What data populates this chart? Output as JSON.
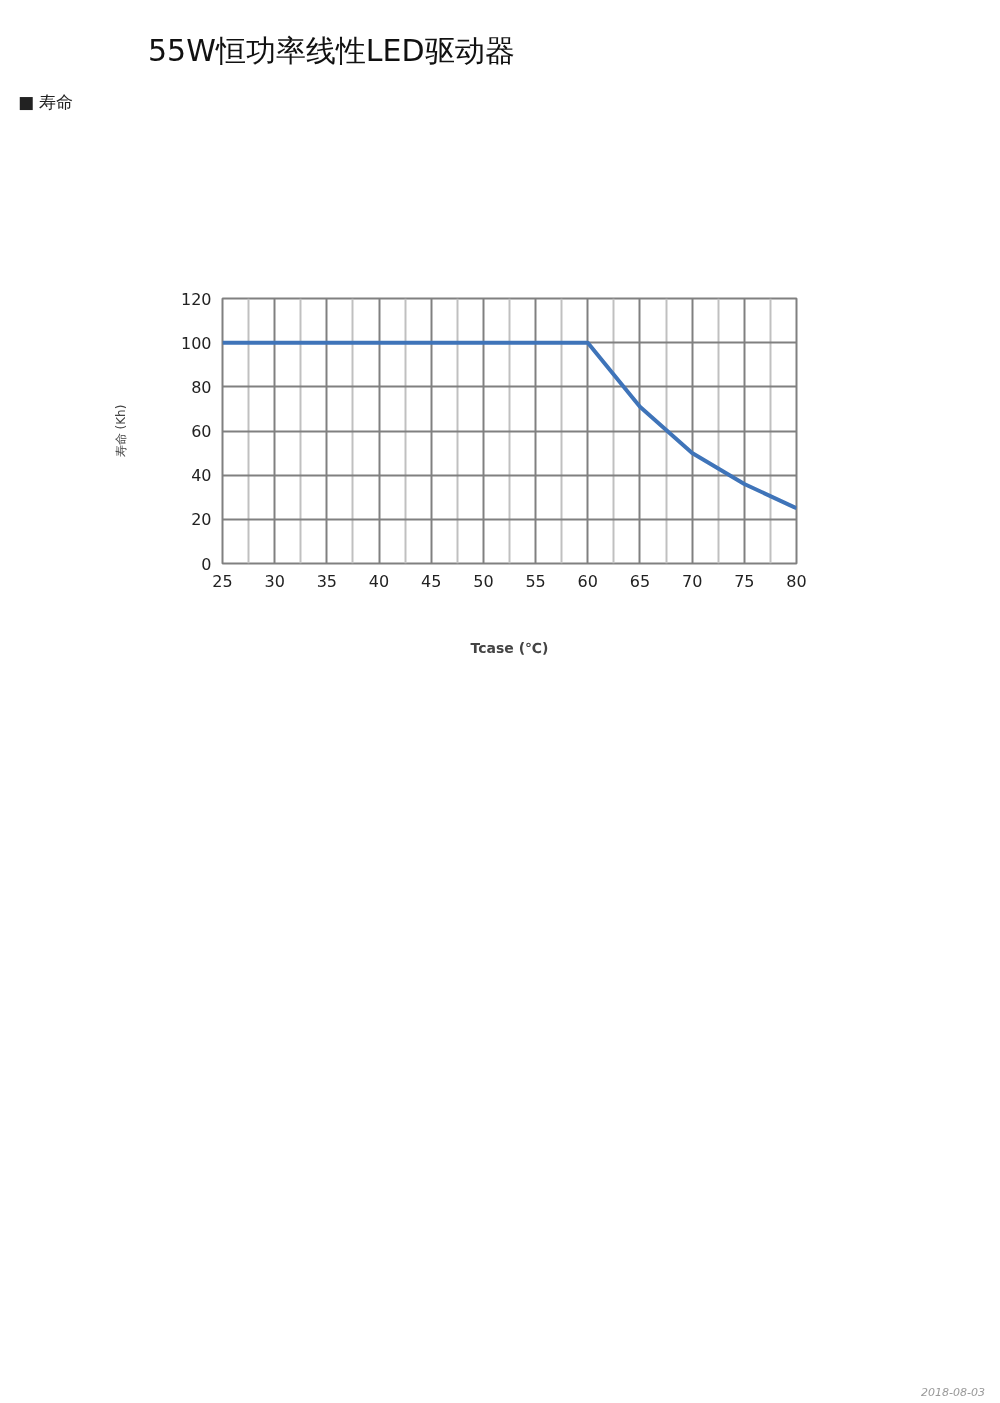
{
  "chart_data": {
    "type": "line",
    "title": "55W恒功率线性LED驱动器",
    "subtitle": "■ 寿命",
    "xlabel": "Tcase (℃)",
    "ylabel": "寿命 (Kh)",
    "x": [
      25,
      60,
      65,
      70,
      75,
      80
    ],
    "series": [
      {
        "color": "#3f74b9",
        "values": [
          100,
          100,
          71,
          50,
          36,
          25
        ]
      }
    ],
    "xlim": [
      25,
      80
    ],
    "ylim": [
      0,
      120
    ],
    "xticks": [
      25,
      30,
      35,
      40,
      45,
      50,
      55,
      60,
      65,
      70,
      75,
      80
    ],
    "yticks": [
      0,
      20,
      40,
      60,
      80,
      100,
      120
    ],
    "grid": true,
    "line_style": "solid",
    "annotations": [
      "2018-08-03"
    ]
  }
}
